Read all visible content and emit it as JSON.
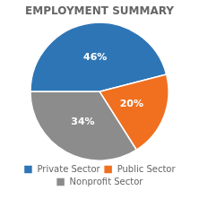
{
  "chart_data": {
    "type": "pie",
    "title": "EMPLOYMENT SUMMARY",
    "categories": [
      "Private Sector",
      "Public Sector",
      "Nonprofit Sector"
    ],
    "values": [
      46,
      20,
      34
    ],
    "value_labels": [
      "46%",
      "20%",
      "34%"
    ],
    "data_labels": true,
    "colors": [
      "#2E75B6",
      "#F07020",
      "#8C8C8C"
    ],
    "legend": "bottom"
  }
}
